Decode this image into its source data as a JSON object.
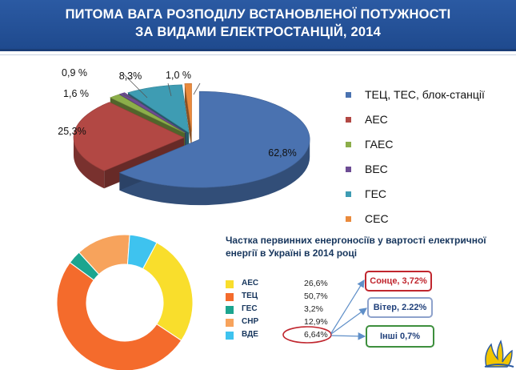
{
  "header": {
    "line1": "ПИТОМА ВАГА РОЗПОДІЛУ ВСТАНОВЛЕНОЇ ПОТУЖНОСТІ",
    "line2": "ЗА ВИДАМИ ЕЛЕКТРОСТАНЦІЙ, 2014"
  },
  "chart_data": [
    {
      "type": "pie",
      "style": "3d-exploded",
      "title": "",
      "categories": [
        "ТЕЦ, ТЕС, блок-станції",
        "АЕС",
        "ГАЕС",
        "ВЕС",
        "ГЕС",
        "СЕС"
      ],
      "values": [
        62.8,
        25.3,
        1.6,
        0.9,
        8.3,
        1.0
      ],
      "data_labels": [
        "62,8%",
        "25,3%",
        "1,6 %",
        "0,9 %",
        "8,3%",
        "1,0 %"
      ],
      "colors": [
        "#4a72b0",
        "#b24844",
        "#8cae4a",
        "#6d4c94",
        "#3e9cb3",
        "#ea8a3c"
      ],
      "legend_position": "right"
    },
    {
      "type": "pie",
      "style": "donut",
      "title": "Частка первинних енергоносіїв у вартості електричної енергії в Україні в 2014 році",
      "categories": [
        "АЕС",
        "ТЕЦ",
        "ГЕС",
        "СНР",
        "ВДЕ"
      ],
      "values": [
        26.6,
        50.7,
        3.2,
        12.9,
        6.64
      ],
      "data_labels": [
        "26,6%",
        "50,7%",
        "3,2%",
        "12,9%",
        "6,64%"
      ],
      "colors": [
        "#f9de2c",
        "#f46b2c",
        "#1ca58f",
        "#f7a35c",
        "#3ec3ef"
      ],
      "legend_position": "right",
      "breakdown": {
        "of": "ВДЕ",
        "items": [
          "Сонце, 3,72%",
          "Вітер, 2.22%",
          "Інші 0,7%"
        ]
      }
    }
  ]
}
